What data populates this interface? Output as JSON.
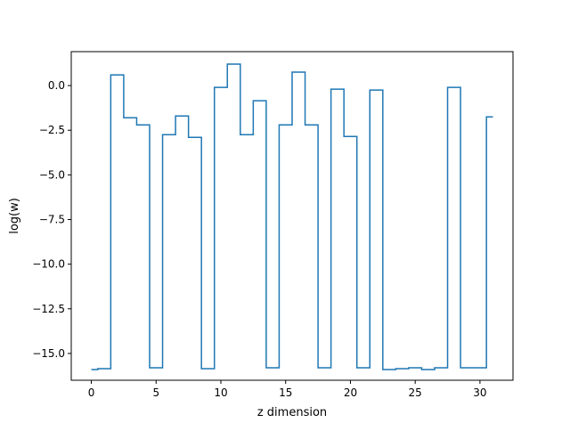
{
  "chart_data": {
    "type": "line",
    "drawstyle": "steps-mid",
    "title": "",
    "xlabel": "z dimension",
    "ylabel": "log(w)",
    "xlim": [
      -1.55,
      32.55
    ],
    "ylim": [
      -16.5,
      1.9
    ],
    "xticks": [
      0,
      5,
      10,
      15,
      20,
      25,
      30
    ],
    "xtick_labels": [
      "0",
      "5",
      "10",
      "15",
      "20",
      "25",
      "30"
    ],
    "yticks": [
      0.0,
      -2.5,
      -5.0,
      -7.5,
      -10.0,
      -12.5,
      -15.0
    ],
    "ytick_labels": [
      "0.0",
      "−2.5",
      "−5.0",
      "−7.5",
      "−10.0",
      "−12.5",
      "−15.0"
    ],
    "grid": false,
    "x": [
      0,
      1,
      2,
      3,
      4,
      5,
      6,
      7,
      8,
      9,
      10,
      11,
      12,
      13,
      14,
      15,
      16,
      17,
      18,
      19,
      20,
      21,
      22,
      23,
      24,
      25,
      26,
      27,
      28,
      29,
      30,
      31
    ],
    "series": [
      {
        "color": "#1f77b4",
        "values": [
          -15.9,
          -15.85,
          0.6,
          -1.8,
          -2.2,
          -15.8,
          -2.75,
          -1.7,
          -2.9,
          -15.85,
          -0.1,
          1.2,
          -2.75,
          -0.85,
          -15.8,
          -2.2,
          0.75,
          -2.2,
          -15.8,
          -0.2,
          -2.85,
          -15.8,
          -0.25,
          -15.9,
          -15.85,
          -15.8,
          -15.9,
          -15.8,
          -0.1,
          -15.8,
          -15.8,
          -1.75
        ]
      }
    ]
  }
}
